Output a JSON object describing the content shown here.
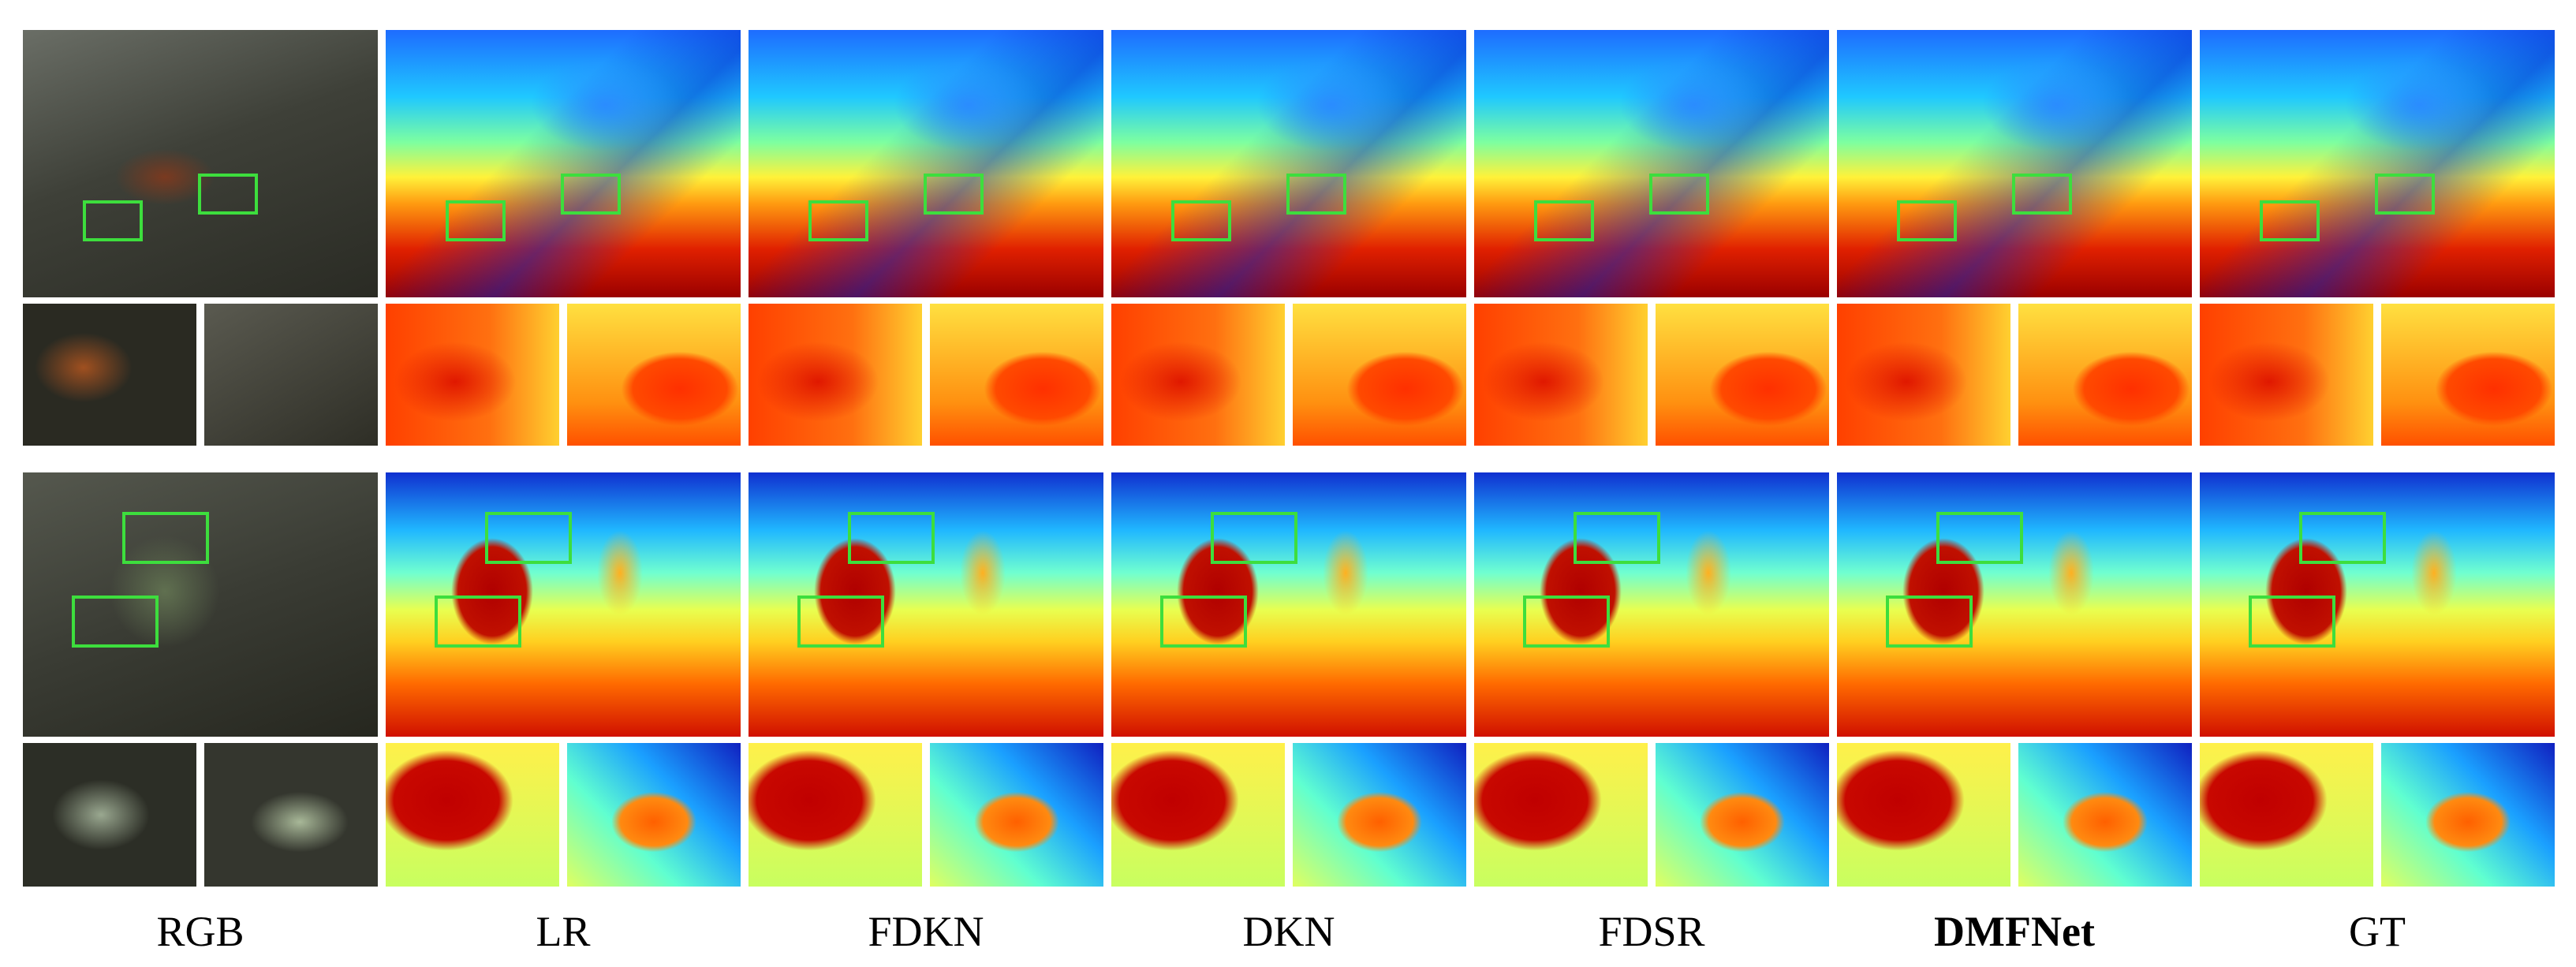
{
  "figure": {
    "columns": [
      "RGB",
      "LR",
      "FDKN",
      "DKN",
      "FDSR",
      "DMFNet",
      "GT"
    ]
  }
}
